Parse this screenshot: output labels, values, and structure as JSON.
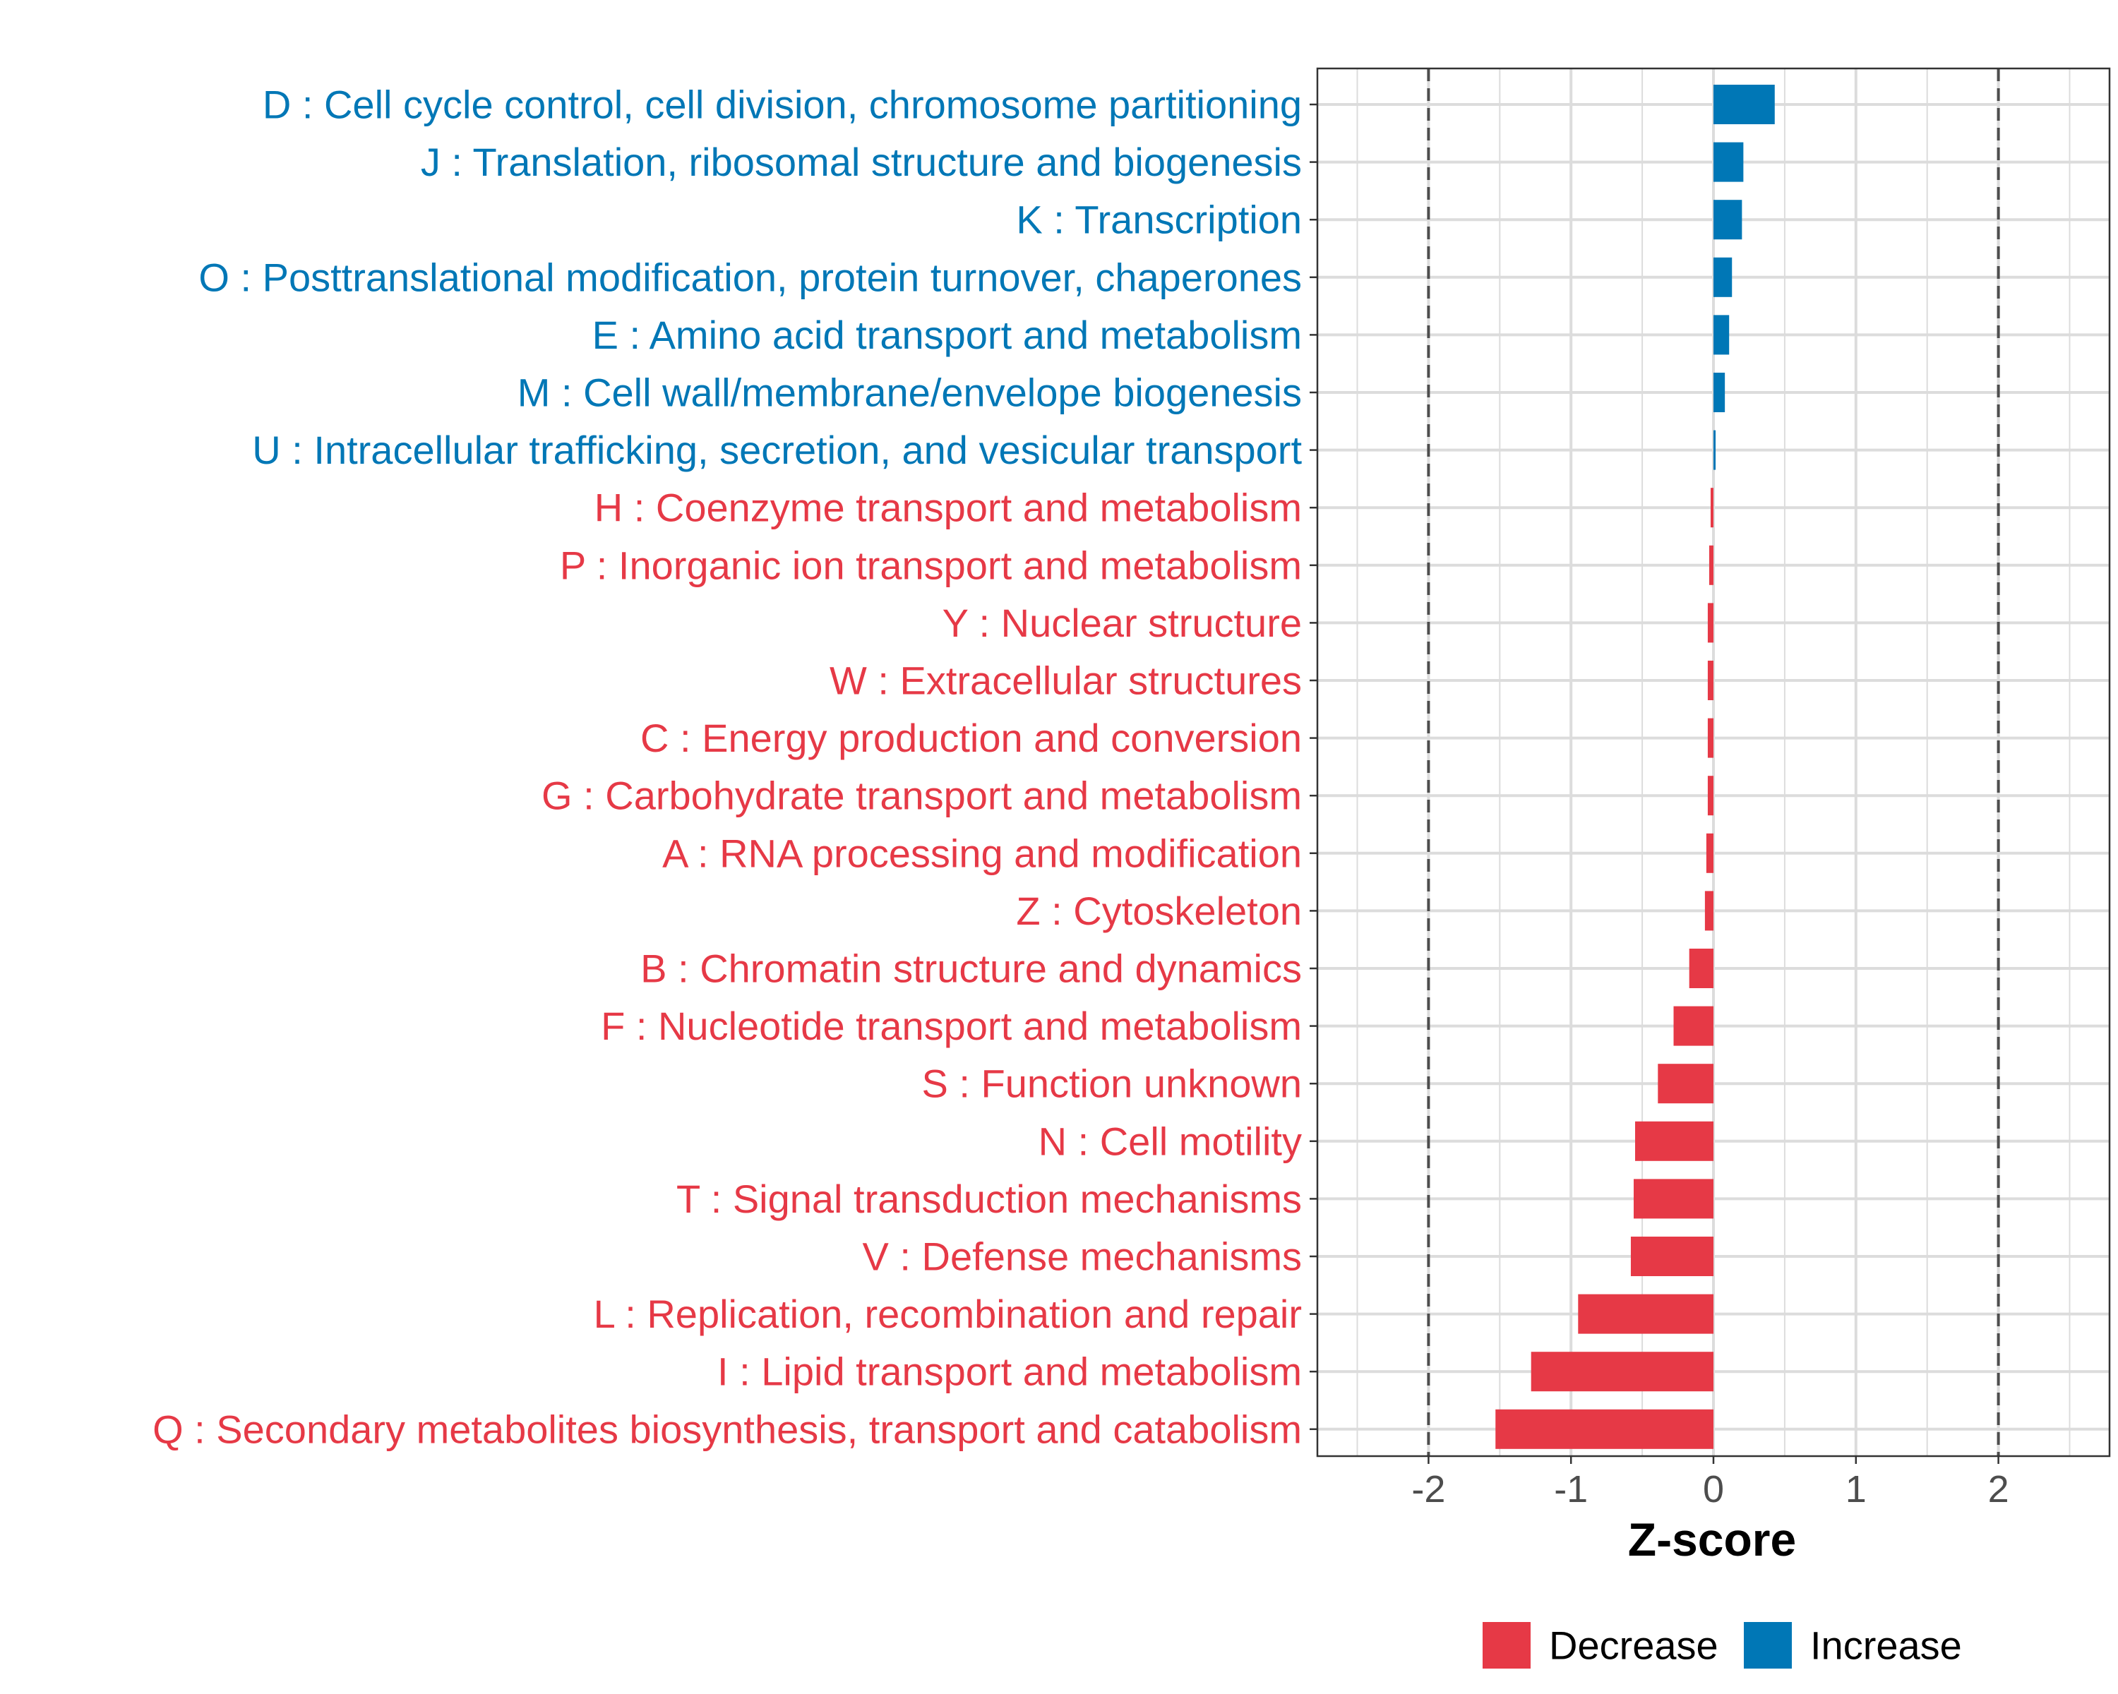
{
  "chart_data": {
    "type": "bar",
    "orientation": "horizontal",
    "xlabel": "Z-score",
    "xlim": [
      -2.78,
      2.78
    ],
    "xticks": [
      -2,
      -1,
      0,
      1,
      2
    ],
    "xtick_labels": [
      "-2",
      "-1",
      "0",
      "1",
      "2"
    ],
    "reference_lines": [
      -2,
      2
    ],
    "grid": true,
    "legend_position": "bottom",
    "legend": [
      {
        "name": "Decrease",
        "color": "#E63946"
      },
      {
        "name": "Increase",
        "color": "#0077B6"
      }
    ],
    "categories": [
      "D : Cell cycle control, cell division, chromosome partitioning",
      "J : Translation, ribosomal structure and biogenesis",
      "K : Transcription",
      "O : Posttranslational modification, protein turnover, chaperones",
      "E : Amino acid transport and metabolism",
      "M : Cell wall/membrane/envelope biogenesis",
      "U : Intracellular trafficking, secretion, and vesicular transport",
      "H : Coenzyme transport and metabolism",
      "P : Inorganic ion transport and metabolism",
      "Y : Nuclear structure",
      "W : Extracellular structures",
      "C : Energy production and conversion",
      "G : Carbohydrate transport and metabolism",
      "A : RNA processing and modification",
      "Z : Cytoskeleton",
      "B : Chromatin structure and dynamics",
      "F : Nucleotide transport and metabolism",
      "S : Function unknown",
      "N : Cell motility",
      "T : Signal transduction mechanisms",
      "V : Defense mechanisms",
      "L : Replication, recombination and repair",
      "I : Lipid transport and metabolism",
      "Q : Secondary metabolites biosynthesis, transport and catabolism"
    ],
    "values": [
      0.43,
      0.21,
      0.2,
      0.13,
      0.11,
      0.08,
      0.015,
      -0.02,
      -0.03,
      -0.04,
      -0.04,
      -0.04,
      -0.04,
      -0.05,
      -0.06,
      -0.17,
      -0.28,
      -0.39,
      -0.55,
      -0.56,
      -0.58,
      -0.95,
      -1.28,
      -1.53
    ],
    "groups": [
      "Increase",
      "Increase",
      "Increase",
      "Increase",
      "Increase",
      "Increase",
      "Increase",
      "Decrease",
      "Decrease",
      "Decrease",
      "Decrease",
      "Decrease",
      "Decrease",
      "Decrease",
      "Decrease",
      "Decrease",
      "Decrease",
      "Decrease",
      "Decrease",
      "Decrease",
      "Decrease",
      "Decrease",
      "Decrease",
      "Decrease"
    ]
  }
}
